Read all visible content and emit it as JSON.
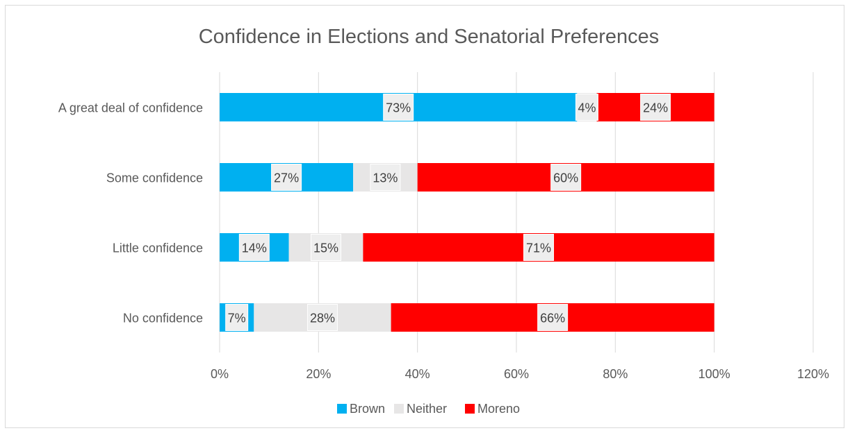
{
  "chart_data": {
    "type": "bar",
    "orientation": "horizontal",
    "stacked": true,
    "title": "Confidence in Elections and Senatorial Preferences",
    "categories": [
      "A great deal of confidence",
      "Some confidence",
      "Little confidence",
      "No confidence"
    ],
    "series": [
      {
        "name": "Brown",
        "color": "#00b0f0",
        "values": [
          0.73,
          0.27,
          0.14,
          0.07
        ],
        "labels": [
          "73%",
          "27%",
          "14%",
          "7%"
        ]
      },
      {
        "name": "Neither",
        "color": "#e7e6e6",
        "values": [
          0.04,
          0.13,
          0.15,
          0.28
        ],
        "labels": [
          "4%",
          "13%",
          "15%",
          "28%"
        ]
      },
      {
        "name": "Moreno",
        "color": "#ff0000",
        "values": [
          0.24,
          0.6,
          0.71,
          0.66
        ],
        "labels": [
          "24%",
          "60%",
          "71%",
          "66%"
        ]
      }
    ],
    "xlim": [
      0,
      1.2
    ],
    "xticks": [
      "0%",
      "20%",
      "40%",
      "60%",
      "80%",
      "100%",
      "120%"
    ],
    "grid": true,
    "legend_position": "bottom"
  }
}
